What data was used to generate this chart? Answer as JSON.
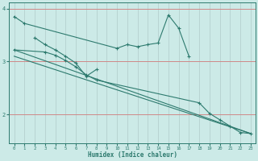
{
  "xlabel": "Humidex (Indice chaleur)",
  "bg": "#cceae7",
  "lc": "#2d7a6e",
  "grid_v": "#b0cbca",
  "grid_h": "#d08888",
  "line1_x": [
    0,
    1,
    10,
    11,
    12,
    13,
    14,
    15,
    16,
    17
  ],
  "line1_y": [
    3.85,
    3.72,
    3.25,
    3.32,
    3.28,
    3.32,
    3.35,
    3.88,
    3.63,
    3.1
  ],
  "line2_x": [
    2,
    3,
    4,
    5,
    6,
    7,
    8
  ],
  "line2_y": [
    3.45,
    3.32,
    3.22,
    3.1,
    2.97,
    2.72,
    2.85
  ],
  "line3_x": [
    0,
    3,
    4,
    5,
    6,
    7,
    8,
    18,
    19,
    20,
    21,
    22,
    23
  ],
  "line3_y": [
    3.22,
    3.18,
    3.12,
    3.02,
    2.9,
    2.75,
    2.65,
    2.22,
    2.02,
    1.9,
    1.78,
    1.66,
    1.64
  ],
  "trend1_x": [
    0,
    23
  ],
  "trend1_y": [
    3.22,
    1.64
  ],
  "trend2_x": [
    0,
    23
  ],
  "trend2_y": [
    3.1,
    1.64
  ],
  "xlim": [
    -0.5,
    23.5
  ],
  "ylim": [
    1.45,
    4.12
  ],
  "yticks": [
    2,
    3,
    4
  ],
  "xticks": [
    0,
    1,
    2,
    3,
    4,
    5,
    6,
    7,
    8,
    9,
    10,
    11,
    12,
    13,
    14,
    15,
    16,
    17,
    18,
    19,
    20,
    21,
    22,
    23
  ]
}
